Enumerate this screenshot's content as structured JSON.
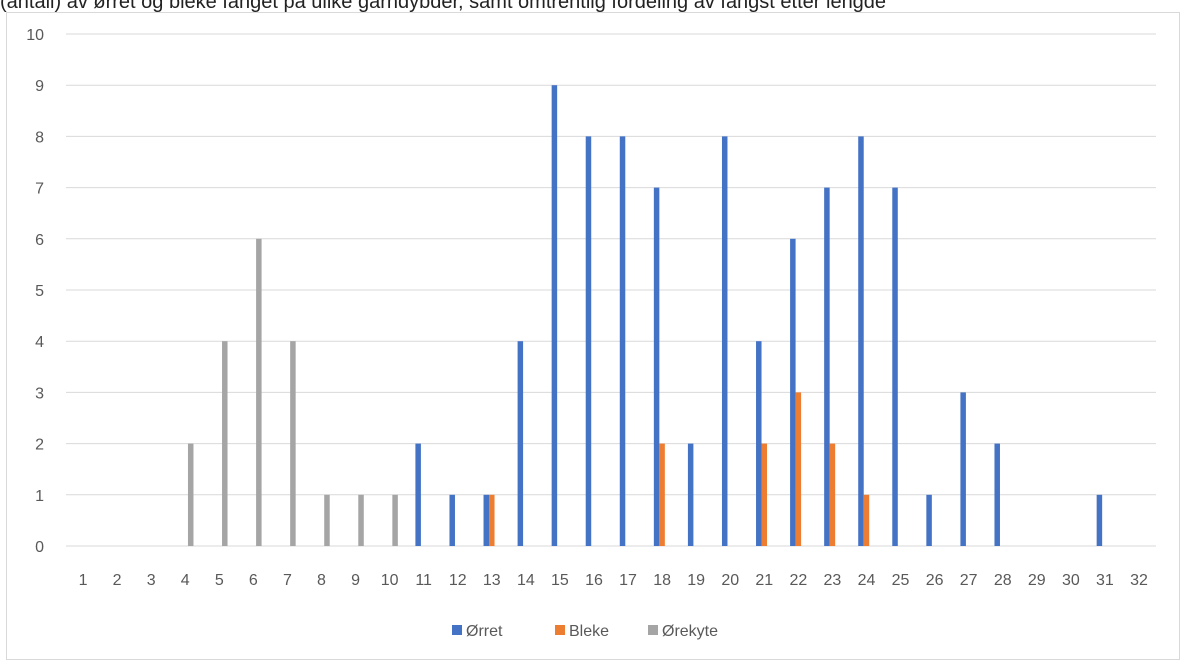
{
  "top_caption": "(antall) av ørret og bleke fanget på ulike garndybder, samt omtrentlig fordeling av fangst etter lengde",
  "chart_data": {
    "type": "bar",
    "title": "",
    "xlabel": "",
    "ylabel": "",
    "ylim": [
      0,
      10
    ],
    "grid": true,
    "legend_position": "bottom",
    "categories": [
      "1",
      "2",
      "3",
      "4",
      "5",
      "6",
      "7",
      "8",
      "9",
      "10",
      "11",
      "12",
      "13",
      "14",
      "15",
      "16",
      "17",
      "18",
      "19",
      "20",
      "21",
      "22",
      "23",
      "24",
      "25",
      "26",
      "27",
      "28",
      "29",
      "30",
      "31",
      "32"
    ],
    "series": [
      {
        "name": "Ørret",
        "color": "#4472c4",
        "values": [
          0,
          0,
          0,
          0,
          0,
          0,
          0,
          0,
          0,
          0,
          2,
          1,
          1,
          4,
          9,
          8,
          8,
          7,
          2,
          8,
          4,
          6,
          7,
          8,
          7,
          1,
          3,
          2,
          0,
          0,
          1,
          0
        ]
      },
      {
        "name": "Bleke",
        "color": "#ed7d31",
        "values": [
          0,
          0,
          0,
          0,
          0,
          0,
          0,
          0,
          0,
          0,
          0,
          0,
          1,
          0,
          0,
          0,
          0,
          2,
          0,
          0,
          2,
          3,
          2,
          1,
          0,
          0,
          0,
          0,
          0,
          0,
          0,
          0
        ]
      },
      {
        "name": "Ørekyte",
        "color": "#a5a5a5",
        "values": [
          0,
          0,
          0,
          2,
          4,
          6,
          4,
          1,
          1,
          1,
          0,
          0,
          0,
          0,
          0,
          0,
          0,
          0,
          0,
          0,
          0,
          0,
          0,
          0,
          0,
          0,
          0,
          0,
          0,
          0,
          0,
          0
        ]
      }
    ],
    "y_ticks": [
      "0",
      "1",
      "2",
      "3",
      "4",
      "5",
      "6",
      "7",
      "8",
      "9",
      "10"
    ]
  }
}
